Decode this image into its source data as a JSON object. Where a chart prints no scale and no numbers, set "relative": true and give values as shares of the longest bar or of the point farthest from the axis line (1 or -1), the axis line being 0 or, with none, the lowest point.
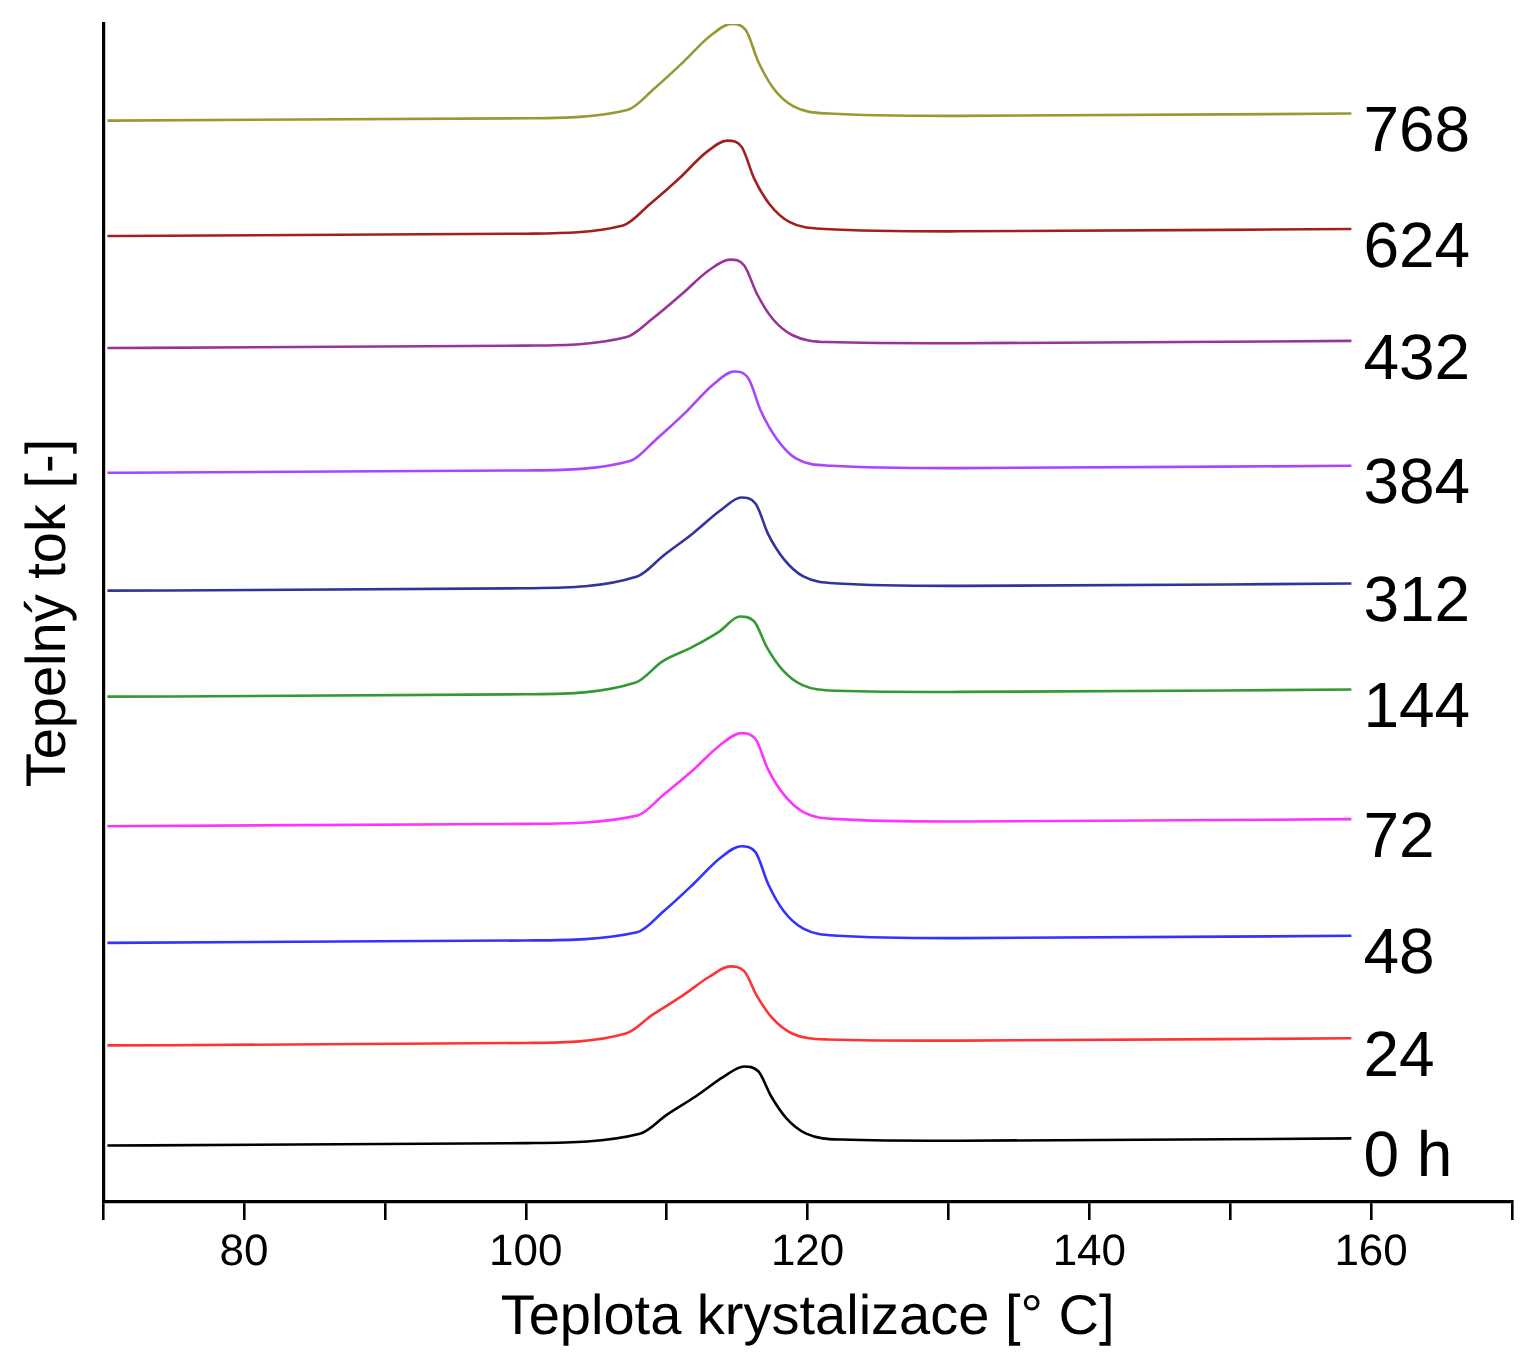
{
  "chart_data": {
    "type": "line",
    "xlabel": "Teplota krystalizace [° C]",
    "ylabel": "Tepelný tok [-]",
    "relative": true,
    "legend": false,
    "grid": false,
    "marker": "none",
    "line_style": "solid",
    "xlim": [
      70,
      170
    ],
    "xticks": [
      {
        "value": 70,
        "label": null
      },
      80,
      {
        "value": 90,
        "label": null
      },
      100,
      {
        "value": 110,
        "label": null
      },
      120,
      {
        "value": 130,
        "label": null
      },
      140,
      {
        "value": 150,
        "label": null
      },
      160,
      {
        "value": 170,
        "label": null
      }
    ],
    "series": [
      {
        "name": "768",
        "color": "#999933",
        "x": [
          70.3,
          100,
          107.2,
          109.1,
          111.2,
          113.1,
          114.6,
          115.6,
          116.5,
          117.6,
          119,
          121.5,
          130,
          158.6
        ],
        "values": [
          0.918,
          0.92,
          0.927,
          0.945,
          0.968,
          0.99,
          1.0,
          0.995,
          0.968,
          0.945,
          0.93,
          0.924,
          0.922,
          0.924
        ]
      },
      {
        "name": "624",
        "color": "#a02020",
        "x": [
          70.3,
          100,
          106.9,
          108.8,
          110.9,
          112.8,
          114.3,
          115.3,
          116.2,
          117.3,
          118.7,
          121.2,
          130,
          158.6
        ],
        "values": [
          0.82,
          0.822,
          0.829,
          0.847,
          0.869,
          0.891,
          0.901,
          0.896,
          0.869,
          0.847,
          0.832,
          0.826,
          0.824,
          0.826
        ]
      },
      {
        "name": "432",
        "color": "#993399",
        "x": [
          70.3,
          100,
          107.1,
          109,
          111.1,
          113,
          114.5,
          115.5,
          116.4,
          117.5,
          118.9,
          121.4,
          130,
          158.6
        ],
        "values": [
          0.725,
          0.727,
          0.734,
          0.75,
          0.771,
          0.791,
          0.8,
          0.795,
          0.771,
          0.75,
          0.736,
          0.73,
          0.729,
          0.731
        ]
      },
      {
        "name": "384",
        "color": "#aa44ff",
        "x": [
          70.3,
          100,
          107.4,
          109.3,
          111.4,
          113.3,
          114.8,
          115.8,
          116.7,
          117.8,
          119.2,
          121.7,
          130,
          158.6
        ],
        "values": [
          0.619,
          0.621,
          0.629,
          0.648,
          0.671,
          0.694,
          0.705,
          0.699,
          0.671,
          0.648,
          0.631,
          0.625,
          0.623,
          0.625
        ]
      },
      {
        "name": "312",
        "color": "#333399",
        "x": [
          70.3,
          100,
          107.9,
          109.8,
          111.9,
          113.8,
          115.3,
          116.3,
          117.2,
          118.3,
          119.7,
          122.2,
          130,
          158.6
        ],
        "values": [
          0.519,
          0.521,
          0.531,
          0.549,
          0.568,
          0.587,
          0.598,
          0.593,
          0.567,
          0.546,
          0.531,
          0.525,
          0.523,
          0.525
        ]
      },
      {
        "name": "144",
        "color": "#339933",
        "x": [
          70.3,
          100,
          107.8,
          109.7,
          111.8,
          113.7,
          115.2,
          116.2,
          117.1,
          118.2,
          119.6,
          122.1,
          130,
          158.6
        ],
        "values": [
          0.429,
          0.431,
          0.441,
          0.459,
          0.471,
          0.484,
          0.497,
          0.493,
          0.471,
          0.452,
          0.439,
          0.434,
          0.433,
          0.435
        ]
      },
      {
        "name": "72",
        "color": "#ff33ff",
        "x": [
          70.3,
          100,
          107.9,
          109.8,
          111.9,
          113.8,
          115.3,
          116.3,
          117.2,
          118.3,
          119.7,
          122.2,
          130,
          158.6
        ],
        "values": [
          0.319,
          0.321,
          0.328,
          0.346,
          0.367,
          0.388,
          0.398,
          0.393,
          0.367,
          0.346,
          0.331,
          0.325,
          0.323,
          0.325
        ]
      },
      {
        "name": "48",
        "color": "#3333ff",
        "x": [
          70.3,
          100,
          107.9,
          109.8,
          111.9,
          113.8,
          115.3,
          116.3,
          117.2,
          118.3,
          119.7,
          122.2,
          130,
          158.6
        ],
        "values": [
          0.22,
          0.222,
          0.229,
          0.247,
          0.27,
          0.292,
          0.302,
          0.297,
          0.27,
          0.247,
          0.232,
          0.226,
          0.224,
          0.226
        ]
      },
      {
        "name": "24",
        "color": "#ff3333",
        "x": [
          70.3,
          100,
          107.1,
          109,
          111.1,
          113,
          114.5,
          115.5,
          116.4,
          117.5,
          118.9,
          121.4,
          130,
          158.6
        ],
        "values": [
          0.133,
          0.135,
          0.143,
          0.159,
          0.175,
          0.191,
          0.2,
          0.196,
          0.175,
          0.156,
          0.143,
          0.138,
          0.137,
          0.139
        ]
      },
      {
        "name": "0 h",
        "color": "#000000",
        "x": [
          70.3,
          100,
          108.1,
          110,
          112.1,
          114,
          115.5,
          116.5,
          117.4,
          118.5,
          119.9,
          122.4,
          130,
          158.6
        ],
        "values": [
          0.048,
          0.05,
          0.058,
          0.074,
          0.09,
          0.106,
          0.115,
          0.111,
          0.09,
          0.071,
          0.058,
          0.053,
          0.052,
          0.054
        ]
      }
    ]
  }
}
